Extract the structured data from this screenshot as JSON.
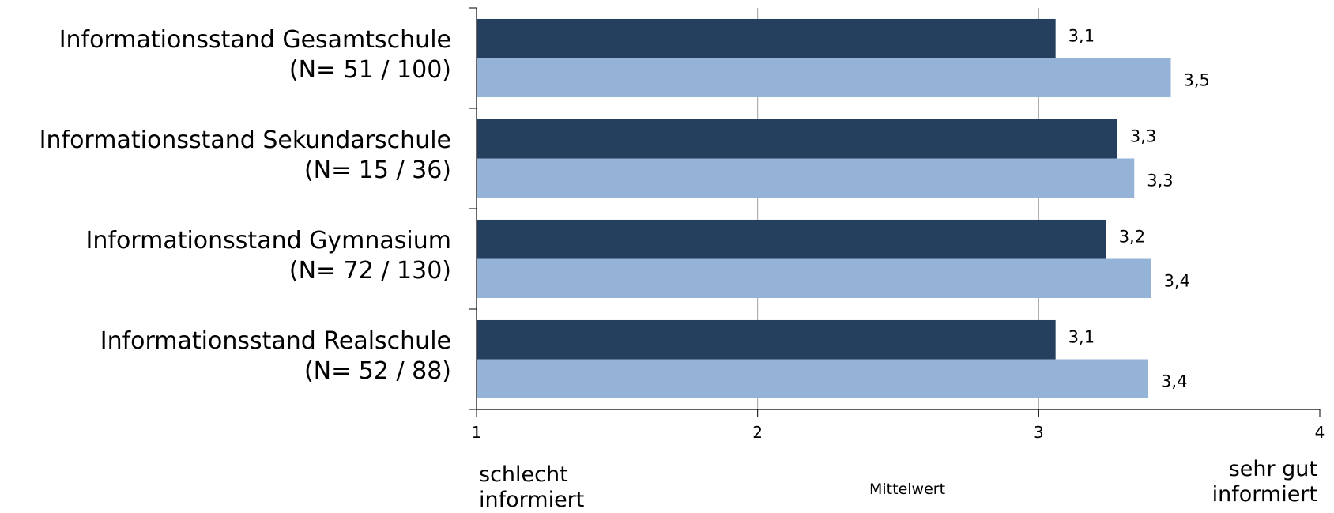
{
  "chart_data": {
    "type": "bar",
    "orientation": "horizontal",
    "categories": [
      [
        "Informationsstand Gesamtschule",
        "(N= 51 / 100)"
      ],
      [
        "Informationsstand Sekundarschule",
        "(N= 15 / 36)"
      ],
      [
        "Informationsstand Gymnasium",
        "(N= 72 / 130)"
      ],
      [
        "Informationsstand Realschule",
        "(N= 52 / 88)"
      ]
    ],
    "series": [
      {
        "color": "#253f5e",
        "values": [
          3.06,
          3.28,
          3.24,
          3.06
        ],
        "labels": [
          "3,1",
          "3,3",
          "3,2",
          "3,1"
        ]
      },
      {
        "color": "#95b3d7",
        "values": [
          3.47,
          3.34,
          3.4,
          3.39
        ],
        "labels": [
          "3,5",
          "3,3",
          "3,4",
          "3,4"
        ]
      }
    ],
    "xlim": [
      1,
      4
    ],
    "xticks": [
      "1",
      "2",
      "3",
      "4"
    ],
    "xlabel": "Mittelwert",
    "left_annotation": [
      "schlecht",
      "informiert"
    ],
    "right_annotation": [
      "sehr gut",
      "informiert"
    ],
    "grid": "vertical"
  }
}
